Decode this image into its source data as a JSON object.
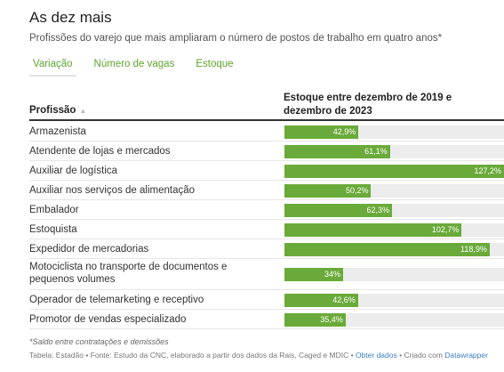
{
  "title": "As dez mais",
  "subtitle": "Profissões do varejo que mais ampliaram o número de postos de trabalho em quatro anos*",
  "tabs": [
    "Variação",
    "Número de vagas",
    "Estoque"
  ],
  "table": {
    "col_profession": "Profissão",
    "col_metric": "Estoque entre dezembro de 2019 e dezembro de 2023"
  },
  "chart_data": {
    "type": "bar",
    "orientation": "horizontal",
    "categories": [
      "Armazenista",
      "Atendente de lojas e mercados",
      "Auxiliar de logística",
      "Auxiliar nos serviços de alimentação",
      "Embalador",
      "Estoquista",
      "Expedidor de mercadorias",
      "Motociclista no transporte de documentos e pequenos volumes",
      "Operador de telemarketing e receptivo",
      "Promotor de vendas especializado"
    ],
    "values": [
      42.9,
      61.1,
      127.2,
      50.2,
      62.3,
      102.7,
      118.9,
      34,
      42.6,
      35.4
    ],
    "value_labels": [
      "42,9%",
      "61,1%",
      "127,2%",
      "50,2%",
      "62,3%",
      "102,7%",
      "118,9%",
      "34%",
      "42,6%",
      "35,4%"
    ],
    "xlim": [
      0,
      127.2
    ],
    "bar_color": "#6aaa3a",
    "track_color": "#ececec"
  },
  "footnote": "*Saldo entre contratações e demissões",
  "source": {
    "text": "Tabela: Estadão • Fonte: Estudo da CNC, elaborado a partir dos dados da Rais, Caged e MDIC •",
    "link_data": "Obter dados",
    "created_with": "• Criado com",
    "link_tool": "Datawrapper"
  },
  "colors": {
    "accent": "#5fa32e",
    "link": "#3b80c4"
  }
}
